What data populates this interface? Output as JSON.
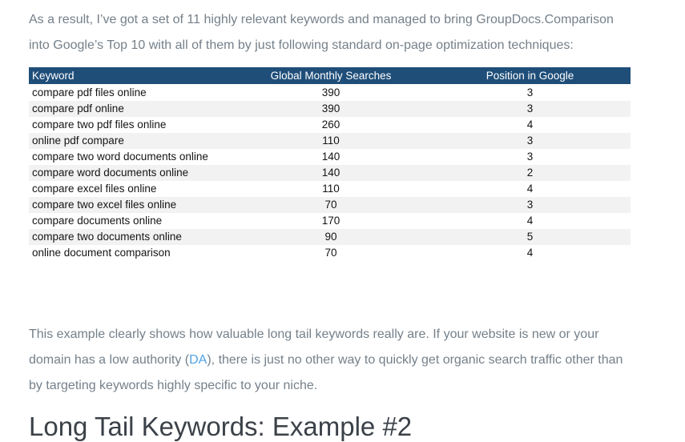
{
  "colors": {
    "table_header_bg": "#1F4E79",
    "table_header_text": "#FFFFFF",
    "table_stripe": "#F2F2F2",
    "table_text": "#141414",
    "body_text": "#75808A",
    "link": "#4DA3E8",
    "heading_text": "#3B4148",
    "page_bg": "#FFFFFF"
  },
  "intro_paragraph": {
    "text": "As a result, I’ve got a set of 11 highly relevant keywords and managed to bring GroupDocs.Comparison\ninto Google’s Top 10 with all of them by just following standard on-page optimization techniques:"
  },
  "keyword_table": {
    "headers": [
      "Keyword",
      "Global Monthly Searches",
      "Position in Google"
    ],
    "rows": [
      {
        "keyword": "compare pdf files online",
        "searches": "390",
        "position": "3"
      },
      {
        "keyword": "compare pdf online",
        "searches": "390",
        "position": "3"
      },
      {
        "keyword": "compare two pdf files online",
        "searches": "260",
        "position": "4"
      },
      {
        "keyword": "online pdf compare",
        "searches": "110",
        "position": "3"
      },
      {
        "keyword": "compare two word documents online",
        "searches": "140",
        "position": "3"
      },
      {
        "keyword": "compare word documents online",
        "searches": "140",
        "position": "2"
      },
      {
        "keyword": "compare excel files online",
        "searches": "110",
        "position": "4"
      },
      {
        "keyword": "compare two excel files online",
        "searches": "70",
        "position": "3"
      },
      {
        "keyword": "compare documents online",
        "searches": "170",
        "position": "4"
      },
      {
        "keyword": "compare two documents online",
        "searches": "90",
        "position": "5"
      },
      {
        "keyword": "online document comparison",
        "searches": "70",
        "position": "4"
      }
    ]
  },
  "analysis_paragraph": {
    "before": "This example clearly shows how valuable long tail keywords really are. If your website is new or your\ndomain has a low authority (",
    "link_text": "DA",
    "after": "), there is just no other way to quickly get organic search traffic other than\nby targeting keywords highly specific to your niche."
  },
  "section_heading": {
    "text": "Long Tail Keywords: Example #2"
  }
}
